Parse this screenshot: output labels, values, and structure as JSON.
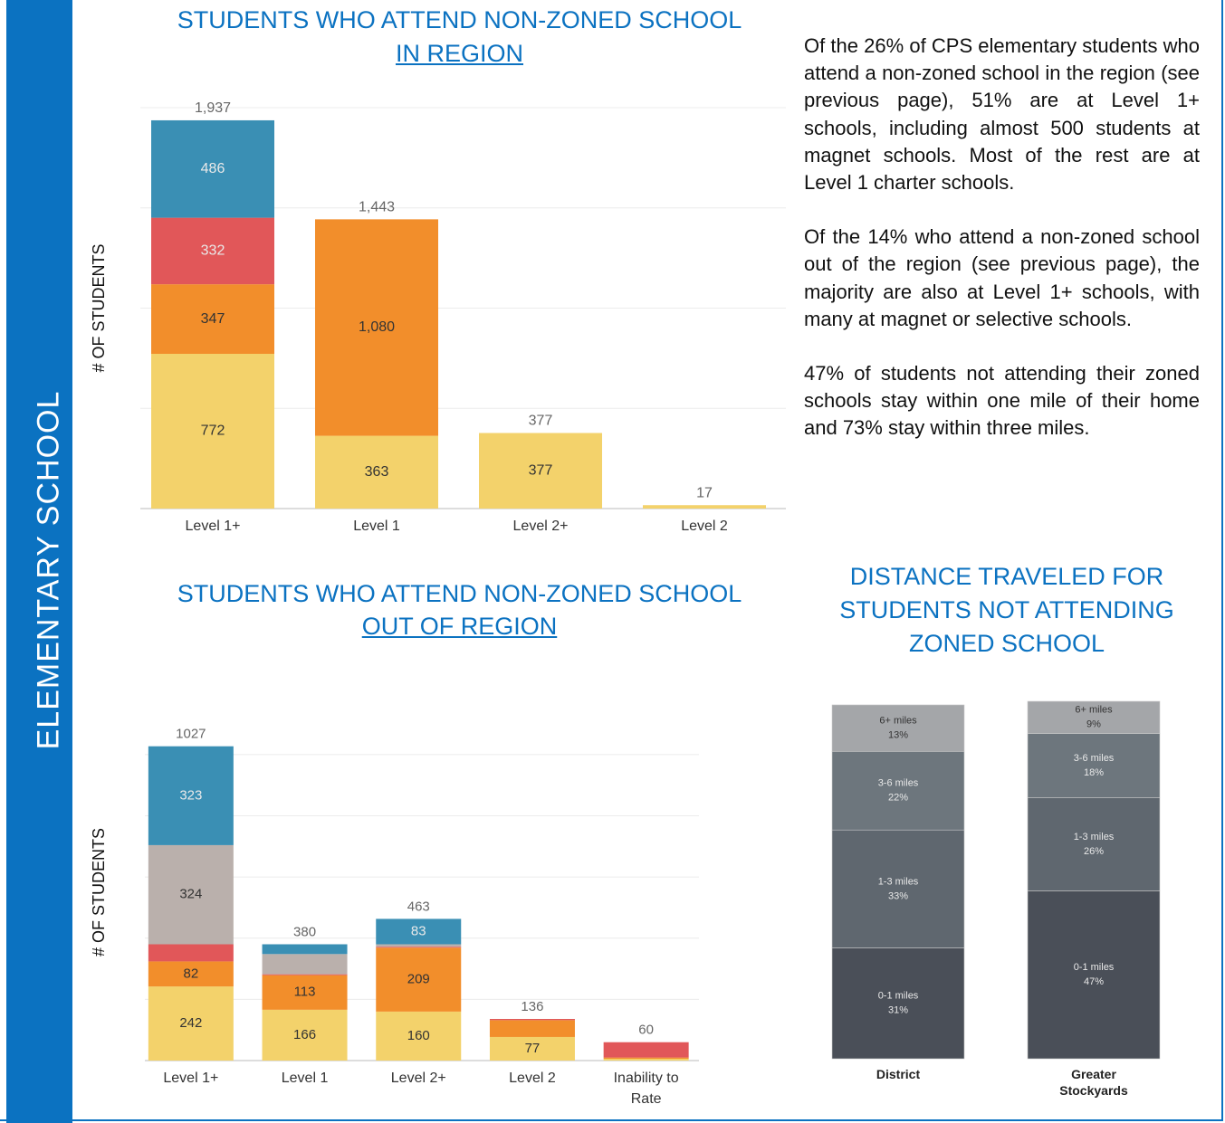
{
  "sidebar": "ELEMENTARY SCHOOL",
  "paragraphs": [
    "Of the 26% of CPS elementary students who attend a non-zoned school in the region (see previous page), 51% are at Level 1+ schools, including almost 500 students at magnet schools. Most of the rest are at Level 1 charter schools.",
    "Of the 14% who attend a non-zoned school out of the region (see previous page), the majority are also at Level 1+ schools, with many at magnet or selective schools.",
    "47% of students not attending their zoned schools stay within one mile of their home and 73% stay within three miles."
  ],
  "chart_data": [
    {
      "type": "bar",
      "stacked": true,
      "title": "STUDENTS WHO ATTEND NON-ZONED SCHOOL",
      "subtitle": "IN REGION",
      "ylabel": "# OF STUDENTS",
      "categories": [
        "Level 1+",
        "Level 1",
        "Level 2+",
        "Level 2"
      ],
      "ylim": [
        0,
        2000
      ],
      "yticks": [
        0,
        500,
        1000,
        1500,
        2000
      ],
      "grid": true,
      "series": [
        {
          "color": "#f3d26b",
          "values": [
            772,
            363,
            377,
            17
          ],
          "value_labels": [
            "772",
            "363",
            "377",
            null
          ]
        },
        {
          "color": "#f28e2b",
          "values": [
            347,
            1080,
            0,
            0
          ],
          "value_labels": [
            "347",
            "1,080",
            null,
            null
          ]
        },
        {
          "color": "#e15759",
          "values": [
            332,
            0,
            0,
            0
          ],
          "value_labels": [
            "332",
            null,
            null,
            null
          ]
        },
        {
          "color": "#3a8fb4",
          "values": [
            486,
            0,
            0,
            0
          ],
          "value_labels": [
            "486",
            null,
            null,
            null
          ]
        }
      ],
      "totals": [
        1937,
        1443,
        377,
        17
      ],
      "total_labels": [
        "1,937",
        "1,443",
        "377",
        "17"
      ]
    },
    {
      "type": "bar",
      "stacked": true,
      "title": "STUDENTS WHO ATTEND NON-ZONED SCHOOL",
      "subtitle": "OUT OF REGION",
      "ylabel": "# OF STUDENTS",
      "categories": [
        "Level 1+",
        "Level 1",
        "Level 2+",
        "Level 2",
        "Inability to Rate"
      ],
      "ylim": [
        0,
        1100
      ],
      "yticks": [
        0,
        200,
        400,
        600,
        800,
        1000
      ],
      "grid": true,
      "series": [
        {
          "color": "#f3d26b",
          "values": [
            242,
            166,
            160,
            77,
            6
          ],
          "value_labels": [
            "242",
            "166",
            "160",
            "77",
            null
          ]
        },
        {
          "color": "#f28e2b",
          "values": [
            82,
            113,
            209,
            55,
            4
          ],
          "value_labels": [
            "82",
            "113",
            "209",
            null,
            null
          ]
        },
        {
          "color": "#e15759",
          "values": [
            56,
            3,
            3,
            4,
            50
          ],
          "value_labels": [
            null,
            null,
            null,
            null,
            null
          ]
        },
        {
          "color": "#bab0ac",
          "values": [
            324,
            66,
            8,
            0,
            0
          ],
          "value_labels": [
            "324",
            null,
            null,
            null,
            null
          ]
        },
        {
          "color": "#3a8fb4",
          "values": [
            323,
            32,
            83,
            0,
            0
          ],
          "value_labels": [
            "323",
            null,
            "83",
            null,
            null
          ]
        }
      ],
      "totals": [
        1027,
        380,
        463,
        136,
        60
      ]
    },
    {
      "type": "bar",
      "stacked": true,
      "title": "DISTANCE TRAVELED FOR STUDENTS NOT ATTENDING ZONED SCHOOL",
      "categories": [
        "District",
        "Greater Stockyards"
      ],
      "ylim": [
        0,
        100
      ],
      "series": [
        {
          "name": "0-1 miles",
          "color": "#4a4f58",
          "values": [
            31,
            47
          ],
          "value_labels": [
            "31%",
            "47%"
          ]
        },
        {
          "name": "1-3 miles",
          "color": "#5f676f",
          "values": [
            33,
            26
          ],
          "value_labels": [
            "33%",
            "26%"
          ]
        },
        {
          "name": "3-6 miles",
          "color": "#6d767d",
          "values": [
            22,
            18
          ],
          "value_labels": [
            "22%",
            "18%"
          ]
        },
        {
          "name": "6+ miles",
          "color": "#a4a6a9",
          "values": [
            13,
            9
          ],
          "value_labels": [
            "13%",
            "9%"
          ]
        }
      ]
    }
  ]
}
